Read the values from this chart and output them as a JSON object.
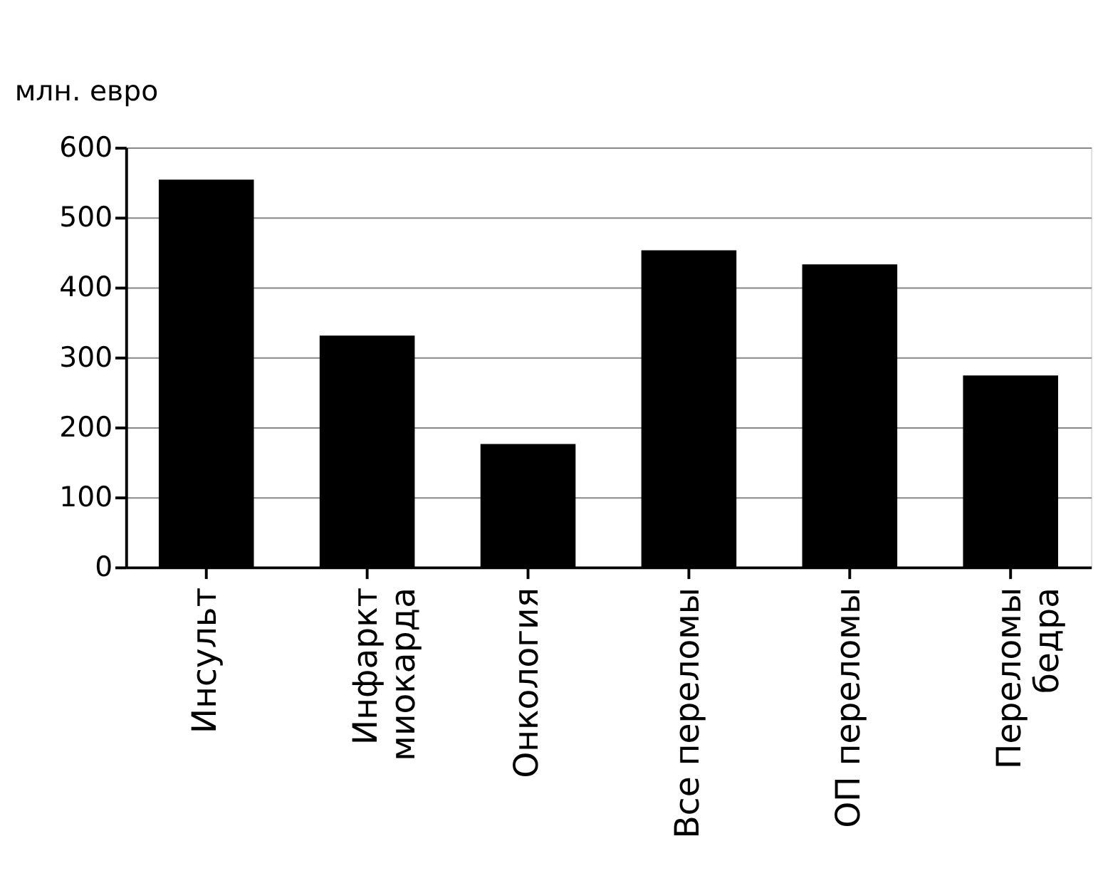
{
  "chart_data": {
    "type": "bar",
    "ylabel": "млн. евро",
    "categories": [
      "Инсульт",
      "Инфаркт\nмиокарда",
      "Онкология",
      "Все переломы",
      "ОП переломы",
      "Переломы\nбедра"
    ],
    "values": [
      554,
      331,
      176,
      453,
      433,
      274
    ],
    "color": "#000000",
    "ylim": [
      0,
      600
    ],
    "yticks": [
      0,
      100,
      200,
      300,
      400,
      500,
      600
    ],
    "grid": "y"
  }
}
